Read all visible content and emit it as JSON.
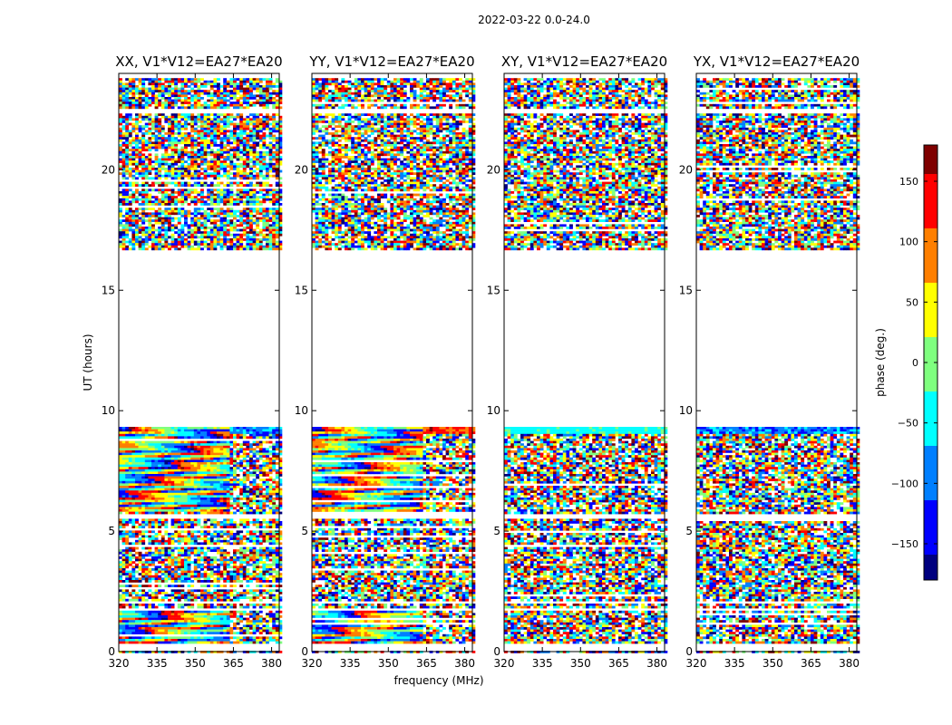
{
  "figure_title": "2022-03-22 0.0-24.0",
  "colorbar": {
    "label": "phase (deg.)",
    "range": [
      -180,
      180
    ],
    "ticks": [
      150,
      100,
      50,
      0,
      -50,
      -100,
      -150
    ],
    "tick_labels": [
      "150",
      "100",
      "50",
      "0",
      "−50",
      "−100",
      "−150"
    ],
    "colormap": [
      "#00007f",
      "#0000ff",
      "#007fff",
      "#00ffff",
      "#7fff7f",
      "#ffff00",
      "#ff7f00",
      "#ff0000",
      "#7f0000"
    ]
  },
  "chart_data": {
    "type": "heatmap",
    "title": "2022-03-22 0.0-24.0",
    "xlabel": "frequency (MHz)",
    "ylabel": "UT (hours)",
    "xlim": [
      320,
      383
    ],
    "ylim": [
      0,
      24
    ],
    "xticks": [
      320,
      335,
      350,
      365,
      380
    ],
    "xtick_labels": [
      "320",
      "335",
      "350",
      "365",
      "380"
    ],
    "yticks": [
      0,
      5,
      10,
      15,
      20
    ],
    "ytick_labels": [
      "0",
      "5",
      "10",
      "15",
      "20"
    ],
    "value_label": "phase (deg.)",
    "value_range": [
      -180,
      180
    ],
    "data_gaps_hours": [
      [
        0.0,
        0.3
      ],
      [
        1.7,
        1.8
      ],
      [
        2.0,
        2.1
      ],
      [
        5.55,
        5.75
      ],
      [
        9.3,
        16.7
      ],
      [
        22.3,
        22.5
      ],
      [
        23.8,
        24.0
      ]
    ],
    "panels": [
      {
        "title": "XX, V1*V12=EA27*EA20",
        "pattern": "fringes_low_band"
      },
      {
        "title": "YY, V1*V12=EA27*EA20",
        "pattern": "fringes_low_band"
      },
      {
        "title": "XY, V1*V12=EA27*EA20",
        "pattern": "noise"
      },
      {
        "title": "YX, V1*V12=EA27*EA20",
        "pattern": "noise"
      }
    ]
  }
}
